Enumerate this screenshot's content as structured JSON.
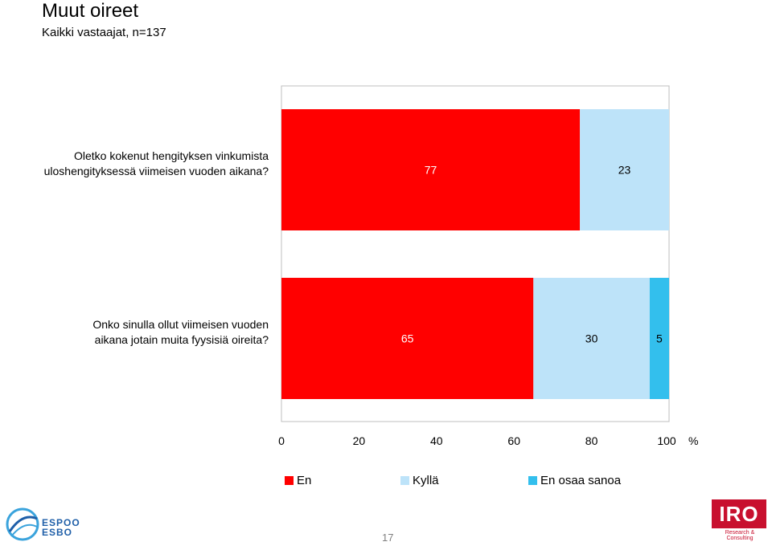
{
  "header": {
    "title": "Muut oireet",
    "subtitle": "Kaikki vastaajat, n=137"
  },
  "chart_data": {
    "type": "bar",
    "orientation": "horizontal",
    "stacked": true,
    "categories": [
      [
        "Oletko kokenut hengityksen vinkumista",
        "uloshengityksessä viimeisen vuoden aikana?"
      ],
      [
        "Onko sinulla ollut viimeisen vuoden",
        "aikana jotain muita fyysisiä oireita?"
      ]
    ],
    "series": [
      {
        "name": "En",
        "color": "#ff0000",
        "label_color": "#ffffff",
        "values": [
          77,
          65
        ]
      },
      {
        "name": "Kyllä",
        "color": "#bde3f9",
        "label_color": "#000000",
        "values": [
          23,
          30
        ]
      },
      {
        "name": "En osaa sanoa",
        "color": "#33bfed",
        "label_color": "#000000",
        "values": [
          0,
          5
        ]
      }
    ],
    "xlim": [
      0,
      100
    ],
    "xticks": [
      0,
      20,
      40,
      60,
      80,
      100
    ],
    "xunit": "%",
    "grid": false,
    "legend_position": "bottom"
  },
  "footer": {
    "page_number": "17",
    "espoo_logo": {
      "line1": "ESPOO",
      "line2": "ESBO"
    },
    "iro_logo": {
      "text": "IRO",
      "tagline": "Research & Consulting"
    }
  }
}
